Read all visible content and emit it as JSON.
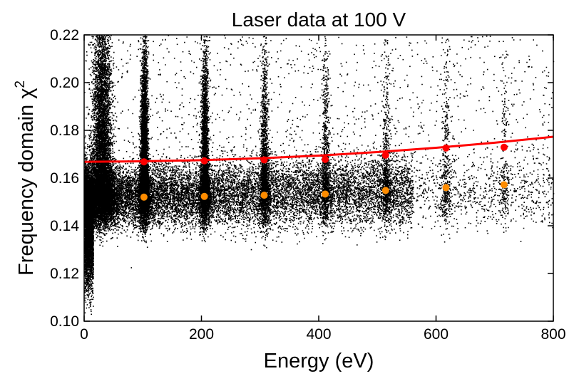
{
  "chart_data": {
    "type": "scatter",
    "title": "Laser data at 100 V",
    "xlabel": "Energy (eV)",
    "ylabel": "Frequency domain χ",
    "ylabel_superscript": "2",
    "xlim": [
      0,
      800
    ],
    "ylim": [
      0.1,
      0.22
    ],
    "xticks": [
      "0",
      "200",
      "400",
      "600",
      "800"
    ],
    "yticks": [
      "0.10",
      "0.12",
      "0.14",
      "0.16",
      "0.18",
      "0.20",
      "0.22"
    ],
    "grid": false,
    "colors": {
      "scatter": "#000000",
      "red_points": "#ff0000",
      "orange_points": "#ff8c00",
      "fit_line": "#ff0000"
    },
    "series": [
      {
        "kind": "scatter-cloud",
        "color": "#000000",
        "description_peaks_eV": [
          0,
          30,
          100,
          205,
          308,
          411,
          514,
          616,
          716
        ],
        "core_chi2": 0.152
      },
      {
        "kind": "points",
        "color": "#ff0000",
        "x": [
          102,
          205,
          307,
          411,
          514,
          617,
          716
        ],
        "y": [
          0.1668,
          0.1672,
          0.1676,
          0.1678,
          0.1696,
          0.1726,
          0.1729
        ]
      },
      {
        "kind": "points",
        "color": "#ff8c00",
        "x": [
          102,
          205,
          307,
          411,
          514,
          617,
          716
        ],
        "y": [
          0.152,
          0.1523,
          0.1528,
          0.1533,
          0.1548,
          0.156,
          0.1572
        ]
      },
      {
        "kind": "line",
        "color": "#ff0000",
        "x": [
          0,
          100,
          200,
          300,
          400,
          500,
          600,
          700,
          800
        ],
        "y": [
          0.1668,
          0.167,
          0.1675,
          0.1683,
          0.1694,
          0.1709,
          0.1727,
          0.1748,
          0.1773
        ]
      }
    ]
  }
}
